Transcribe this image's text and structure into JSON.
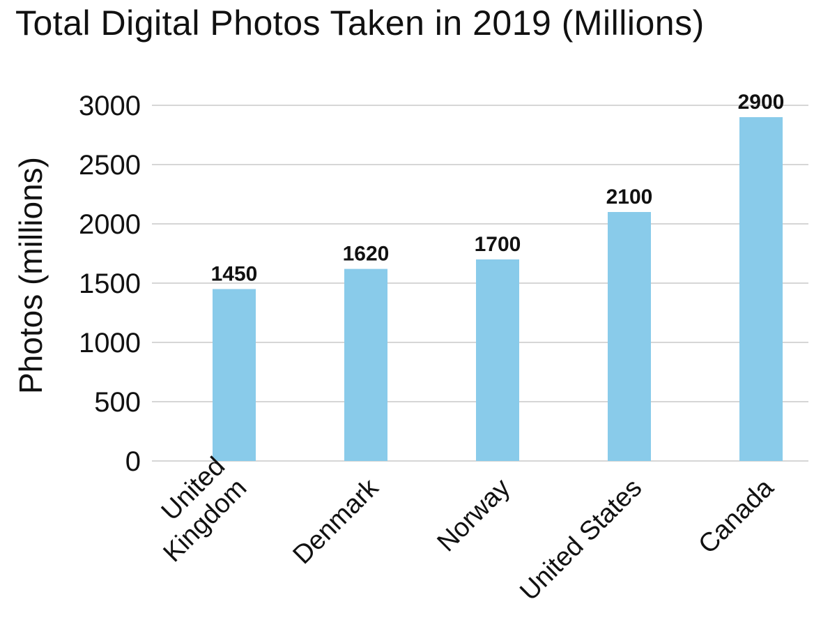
{
  "chart_data": {
    "type": "bar",
    "title": "Total Digital Photos Taken in 2019 (Millions)",
    "xlabel": "",
    "ylabel": "Photos (millions)",
    "categories": [
      [
        "United",
        "Kingdom"
      ],
      [
        "Denmark"
      ],
      [
        "Norway"
      ],
      [
        "United States"
      ],
      [
        "Canada"
      ]
    ],
    "values": [
      1450,
      1620,
      1700,
      2100,
      2900
    ],
    "data_labels": [
      "1450",
      "1620",
      "1700",
      "2100",
      "2900"
    ],
    "ylim": [
      0,
      3000
    ],
    "yticks": [
      0,
      500,
      1000,
      1500,
      2000,
      2500,
      3000
    ],
    "grid": true,
    "colors": {
      "bar": "#89CBEA",
      "grid": "#c8c8c8",
      "text": "#111111"
    }
  }
}
